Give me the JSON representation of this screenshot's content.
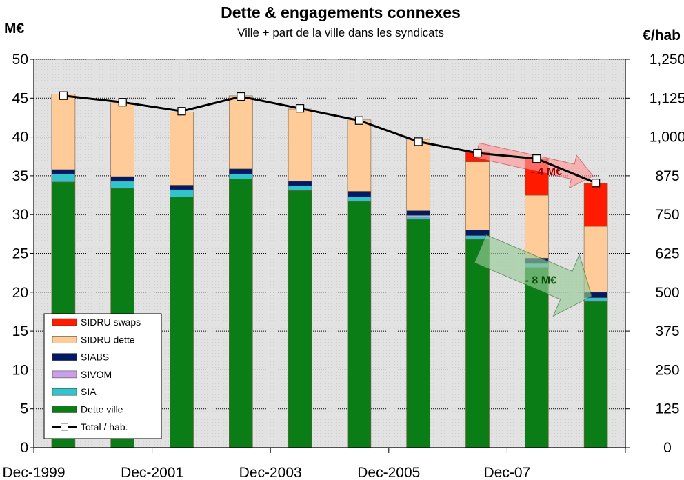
{
  "chart_data": {
    "type": "bar",
    "stacked": true,
    "title": "Dette & engagements connexes",
    "subtitle": "Ville + part de la ville dans les syndicats",
    "ylabel_left": "M€",
    "ylabel_right": "€/hab",
    "ylim": [
      0,
      50
    ],
    "ylim_right": [
      0,
      1250
    ],
    "yticks_left": [
      "0",
      "5",
      "10",
      "15",
      "20",
      "25",
      "30",
      "35",
      "40",
      "45",
      "50"
    ],
    "yticks_right": [
      "0",
      "125",
      "250",
      "375",
      "500",
      "625",
      "750",
      "875",
      "1,000",
      "1,125",
      "1,250"
    ],
    "categories": [
      "Dec-1999",
      "",
      "Dec-2001",
      "",
      "Dec-2003",
      "",
      "Dec-2005",
      "",
      "Dec-07",
      ""
    ],
    "grid": true,
    "legend_position": "bottom-left",
    "series": [
      {
        "name": "Dette ville",
        "color": "#0a7d16",
        "values": [
          34.2,
          33.4,
          32.3,
          34.6,
          33.1,
          31.7,
          29.4,
          26.8,
          23.2,
          18.8
        ]
      },
      {
        "name": "SIA",
        "color": "#33c3cc",
        "values": [
          1.0,
          0.9,
          0.9,
          0.6,
          0.6,
          0.6,
          0.3,
          0.5,
          0.5,
          0.5
        ]
      },
      {
        "name": "SIVOM",
        "color": "#c9a0e6",
        "values": [
          0,
          0,
          0,
          0,
          0,
          0,
          0.2,
          0,
          0,
          0
        ]
      },
      {
        "name": "SIABS",
        "color": "#001a66",
        "values": [
          0.6,
          0.6,
          0.6,
          0.7,
          0.6,
          0.7,
          0.6,
          0.7,
          0.7,
          0.7
        ]
      },
      {
        "name": "SIDRU dette",
        "color": "#ffcc99",
        "values": [
          9.7,
          9.5,
          9.4,
          9.4,
          9.3,
          9.2,
          9.2,
          8.8,
          8.1,
          8.5
        ]
      },
      {
        "name": "SIDRU swaps",
        "color": "#ff1a00",
        "values": [
          0,
          0,
          0,
          0,
          0,
          0,
          0,
          1.3,
          4.7,
          5.5
        ]
      }
    ],
    "line_series": {
      "name": "Total / hab.",
      "axis": "right",
      "values": [
        1133,
        1112,
        1083,
        1130,
        1092,
        1053,
        985,
        948,
        930,
        852
      ]
    },
    "annotations": [
      {
        "text": "- 4 M€",
        "color": "#990000",
        "fill": "#ff9999"
      },
      {
        "text": "- 8 M€",
        "color": "#0a4d0a",
        "fill": "#99cc99"
      }
    ]
  }
}
